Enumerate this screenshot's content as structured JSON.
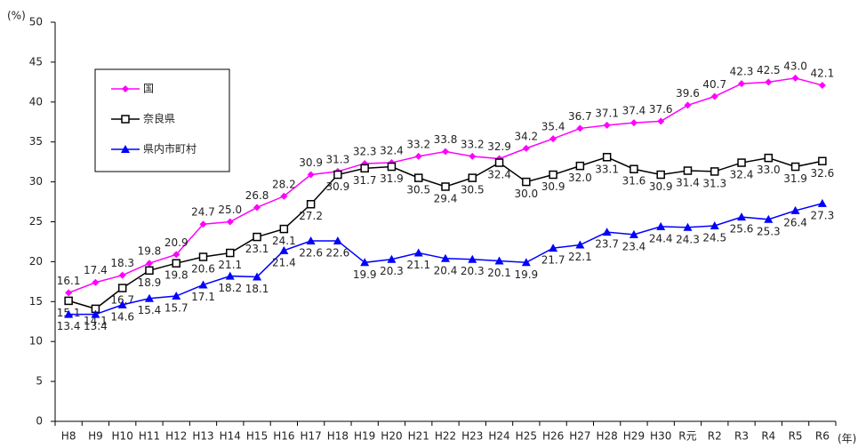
{
  "chart_data": {
    "type": "line",
    "y_unit": "(%)",
    "x_unit": "(年)",
    "categories": [
      "H8",
      "H9",
      "H10",
      "H11",
      "H12",
      "H13",
      "H14",
      "H15",
      "H16",
      "H17",
      "H18",
      "H19",
      "H20",
      "H21",
      "H22",
      "H23",
      "H24",
      "H25",
      "H26",
      "H27",
      "H28",
      "H29",
      "H30",
      "R元",
      "R2",
      "R3",
      "R4",
      "R5",
      "R6"
    ],
    "ylim": [
      0,
      50
    ],
    "yticks": [
      0,
      5,
      10,
      15,
      20,
      25,
      30,
      35,
      40,
      45,
      50
    ],
    "grid": false,
    "legend": "upper left",
    "series": [
      {
        "name": "国",
        "color": "#ff00ff",
        "marker": "diamond",
        "label_side": "above",
        "values": [
          16.1,
          17.4,
          18.3,
          19.8,
          20.9,
          24.7,
          25.0,
          26.8,
          28.2,
          30.9,
          31.3,
          32.3,
          32.4,
          33.2,
          33.8,
          33.2,
          32.9,
          34.2,
          35.4,
          36.7,
          37.1,
          37.4,
          37.6,
          39.6,
          40.7,
          42.3,
          42.5,
          43.0,
          42.1
        ],
        "value_labels": [
          "16.1",
          "17.4",
          "18.3",
          "19.8",
          "20.9",
          "24.7",
          "25.0",
          "26.8",
          "28.2",
          "30.9",
          "31.3",
          "32.3",
          "32.4",
          "33.2",
          "33.8",
          "33.2",
          "32.9",
          "34.2",
          "35.4",
          "36.7",
          "37.1",
          "37.4",
          "37.6",
          "39.6",
          "40.7",
          "42.3",
          "42.5",
          "43.0",
          "42.1"
        ]
      },
      {
        "name": "奈良県",
        "color": "#000000",
        "marker": "square",
        "label_side": "below",
        "values": [
          15.1,
          14.1,
          16.7,
          18.9,
          19.8,
          20.6,
          21.1,
          23.1,
          24.1,
          27.2,
          30.9,
          31.7,
          31.9,
          30.5,
          29.4,
          30.5,
          32.4,
          30.0,
          30.9,
          32.0,
          33.1,
          31.6,
          30.9,
          31.4,
          31.3,
          32.4,
          33.0,
          31.9,
          32.6
        ],
        "value_labels": [
          "15.1",
          "14.1",
          "16.7",
          "18.9",
          "19.8",
          "20.6",
          "21.1",
          "23.1",
          "24.1",
          "27.2",
          "30.9",
          "31.7",
          "31.9",
          "30.5",
          "29.4",
          "30.5",
          "32.4",
          "30.0",
          "30.9",
          "32.0",
          "33.1",
          "31.6",
          "30.9",
          "31.4",
          "31.3",
          "32.4",
          "33.0",
          "31.9",
          "32.6"
        ]
      },
      {
        "name": "県内市町村",
        "color": "#0000ff",
        "marker": "triangle",
        "label_side": "below",
        "values": [
          13.4,
          13.4,
          14.6,
          15.4,
          15.7,
          17.1,
          18.2,
          18.1,
          21.4,
          22.6,
          22.6,
          19.9,
          20.3,
          21.1,
          20.4,
          20.3,
          20.1,
          19.9,
          21.7,
          22.1,
          23.7,
          23.4,
          24.4,
          24.3,
          24.5,
          25.6,
          25.3,
          26.4,
          27.3
        ],
        "value_labels": [
          "13.4",
          "13.4",
          "14.6",
          "15.4",
          "15.7",
          "17.1",
          "18.2",
          "18.1",
          "21.4",
          "22.6",
          "22.6",
          "19.9",
          "20.3",
          "21.1",
          "20.4",
          "20.3",
          "20.1",
          "19.9",
          "21.7",
          "22.1",
          "23.7",
          "23.4",
          "24.4",
          "24.3",
          "24.5",
          "25.6",
          "25.3",
          "26.4",
          "27.3"
        ]
      }
    ]
  }
}
